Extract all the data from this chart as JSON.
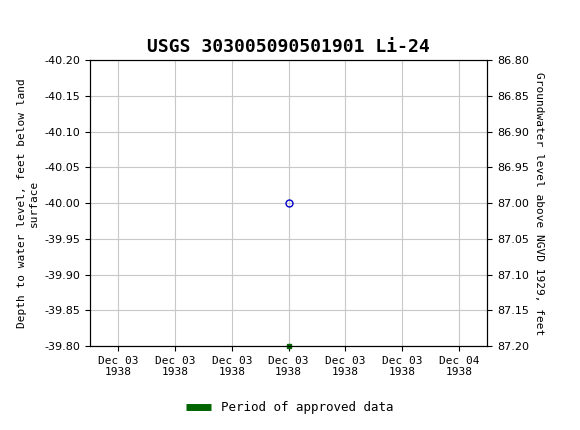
{
  "title": "USGS 303005090501901 Li-24",
  "header_color": "#1a6b3c",
  "bg_color": "#ffffff",
  "plot_bg_color": "#ffffff",
  "grid_color": "#c8c8c8",
  "left_ylabel": "Depth to water level, feet below land\nsurface",
  "right_ylabel": "Groundwater level above NGVD 1929, feet",
  "ylim_left": [
    -40.2,
    -39.8
  ],
  "ylim_right": [
    86.8,
    87.2
  ],
  "left_yticks": [
    -40.2,
    -40.15,
    -40.1,
    -40.05,
    -40.0,
    -39.95,
    -39.9,
    -39.85,
    -39.8
  ],
  "right_yticks": [
    86.8,
    86.85,
    86.9,
    86.95,
    87.0,
    87.05,
    87.1,
    87.15,
    87.2
  ],
  "data_x": [
    3.0
  ],
  "data_y": [
    -40.0
  ],
  "marker_color": "#0000cc",
  "marker_size": 5,
  "bottom_marker_x": 3.0,
  "bottom_marker_color": "#006400",
  "xtick_labels": [
    "Dec 03\n1938",
    "Dec 03\n1938",
    "Dec 03\n1938",
    "Dec 03\n1938",
    "Dec 03\n1938",
    "Dec 03\n1938",
    "Dec 04\n1938"
  ],
  "xtick_positions": [
    0,
    1,
    2,
    3,
    4,
    5,
    6
  ],
  "legend_label": "Period of approved data",
  "legend_line_color": "#006400",
  "font_family": "monospace",
  "title_fontsize": 13,
  "label_fontsize": 8,
  "tick_fontsize": 8
}
